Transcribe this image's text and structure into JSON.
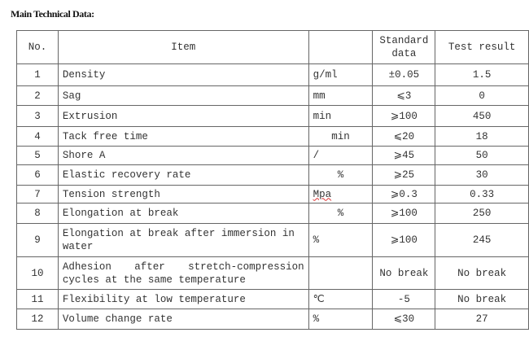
{
  "title": "Main Technical Data:",
  "table": {
    "headers": {
      "no": "No.",
      "item": "Item",
      "unit": "",
      "standard": "Standard data",
      "result": "Test result"
    },
    "rows": [
      {
        "no": "1",
        "item": "Density",
        "unit": "g/ml",
        "standard": "±0.05",
        "result": "1.5"
      },
      {
        "no": "2",
        "item": "Sag",
        "unit": "mm",
        "standard": "⩽3",
        "result": "0"
      },
      {
        "no": "3",
        "item": "Extrusion",
        "unit": "min",
        "standard": "⩾100",
        "result": "450"
      },
      {
        "no": "4",
        "item": "Tack free time",
        "unit": "min",
        "standard": "⩽20",
        "result": "18"
      },
      {
        "no": "5",
        "item": "Shore A",
        "unit": "/",
        "standard": "⩾45",
        "result": "50"
      },
      {
        "no": "6",
        "item": "Elastic recovery rate",
        "unit": "%",
        "standard": "⩾25",
        "result": "30"
      },
      {
        "no": "7",
        "item": "Tension strength",
        "unit": "Mpa",
        "standard": "⩾0.3",
        "result": "0.33"
      },
      {
        "no": "8",
        "item": "Elongation at break",
        "unit": "%",
        "standard": "⩾100",
        "result": "250"
      },
      {
        "no": "9",
        "item": "Elongation at break after immersion in water",
        "unit": "%",
        "standard": "⩾100",
        "result": "245"
      },
      {
        "no": "10",
        "item": "Adhesion after stretch-compression cycles at the same temperature",
        "unit": "",
        "standard": "No break",
        "result": "No break"
      },
      {
        "no": "11",
        "item": "Flexibility at low temperature",
        "unit": "℃",
        "standard": "-5",
        "result": "No break"
      },
      {
        "no": "12",
        "item": "Volume change rate",
        "unit": "%",
        "standard": "⩽30",
        "result": "27"
      }
    ]
  }
}
